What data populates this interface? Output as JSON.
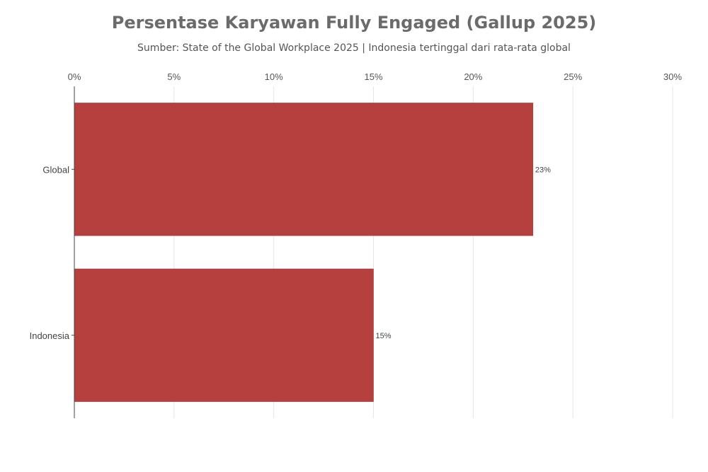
{
  "chart_data": {
    "type": "bar",
    "orientation": "horizontal",
    "title": "Persentase Karyawan Fully Engaged (Gallup 2025)",
    "subtitle": "Sumber: State of the Global Workplace 2025 | Indonesia tertinggal dari rata-rata global",
    "categories": [
      "Global",
      "Indonesia"
    ],
    "values": [
      23,
      15
    ],
    "data_labels": [
      "23%",
      "15%"
    ],
    "xlim": [
      0,
      30
    ],
    "x_ticks": [
      0,
      5,
      10,
      15,
      20,
      25,
      30
    ],
    "x_tick_labels": [
      "0%",
      "5%",
      "10%",
      "15%",
      "20%",
      "25%",
      "30%"
    ],
    "x_axis_position": "top",
    "grid": true,
    "bar_color": "#b5403e"
  }
}
